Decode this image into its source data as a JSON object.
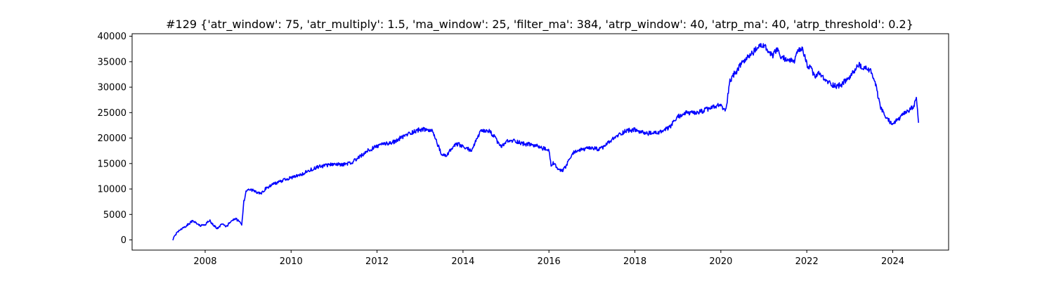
{
  "chart_data": {
    "type": "line",
    "title": "#129 {'atr_window': 75, 'atr_multiply': 1.5, 'ma_window': 25, 'filter_ma': 384, 'atrp_window': 40, 'atrp_ma': 40, 'atrp_threshold': 0.2}",
    "xlabel": "",
    "ylabel": "",
    "xlim": [
      2006.3,
      2025.3
    ],
    "ylim": [
      -2000,
      40500
    ],
    "xticks": [
      2008,
      2010,
      2012,
      2014,
      2016,
      2018,
      2020,
      2022,
      2024
    ],
    "yticks": [
      0,
      5000,
      10000,
      15000,
      20000,
      25000,
      30000,
      35000,
      40000
    ],
    "grid": false,
    "line_color": "#0000ff",
    "series": [
      {
        "x": [
          2007.25,
          2007.3,
          2007.4,
          2007.5,
          2007.6,
          2007.7,
          2007.8,
          2007.9,
          2008.0,
          2008.1,
          2008.2,
          2008.3,
          2008.4,
          2008.5,
          2008.6,
          2008.7,
          2008.8,
          2008.85,
          2008.9,
          2008.95,
          2009.0,
          2009.1,
          2009.2,
          2009.3,
          2009.4,
          2009.5,
          2009.6,
          2009.7,
          2009.8,
          2009.9,
          2010.0,
          2010.2,
          2010.4,
          2010.6,
          2010.8,
          2011.0,
          2011.2,
          2011.4,
          2011.6,
          2011.8,
          2012.0,
          2012.2,
          2012.4,
          2012.6,
          2012.8,
          2013.0,
          2013.2,
          2013.3,
          2013.4,
          2013.5,
          2013.6,
          2013.7,
          2013.8,
          2013.9,
          2014.0,
          2014.2,
          2014.4,
          2014.6,
          2014.7,
          2014.8,
          2014.9,
          2015.0,
          2015.2,
          2015.4,
          2015.6,
          2015.8,
          2016.0,
          2016.05,
          2016.1,
          2016.2,
          2016.3,
          2016.4,
          2016.5,
          2016.6,
          2016.8,
          2017.0,
          2017.2,
          2017.4,
          2017.6,
          2017.8,
          2018.0,
          2018.2,
          2018.4,
          2018.6,
          2018.8,
          2019.0,
          2019.2,
          2019.4,
          2019.6,
          2019.8,
          2020.0,
          2020.1,
          2020.15,
          2020.2,
          2020.3,
          2020.4,
          2020.5,
          2020.6,
          2020.7,
          2020.8,
          2020.9,
          2021.0,
          2021.1,
          2021.2,
          2021.3,
          2021.4,
          2021.5,
          2021.6,
          2021.7,
          2021.8,
          2021.9,
          2022.0,
          2022.1,
          2022.2,
          2022.3,
          2022.4,
          2022.5,
          2022.6,
          2022.7,
          2022.8,
          2022.9,
          2023.0,
          2023.1,
          2023.2,
          2023.3,
          2023.4,
          2023.5,
          2023.6,
          2023.7,
          2023.8,
          2023.9,
          2024.0,
          2024.1,
          2024.2,
          2024.3,
          2024.4,
          2024.5,
          2024.55,
          2024.6
        ],
        "y": [
          0,
          1000,
          1800,
          2400,
          3000,
          3700,
          3300,
          2800,
          3000,
          3900,
          2800,
          2200,
          3300,
          2600,
          3800,
          4200,
          3600,
          2800,
          7500,
          9500,
          10000,
          9800,
          9400,
          9000,
          10000,
          10600,
          11000,
          11300,
          11600,
          12000,
          12200,
          12700,
          13600,
          14300,
          14600,
          14900,
          14800,
          15100,
          16400,
          17600,
          18400,
          18900,
          19300,
          20300,
          21100,
          21700,
          21600,
          21200,
          19000,
          16700,
          16500,
          17500,
          18500,
          18800,
          18200,
          17600,
          21200,
          21400,
          20600,
          19300,
          18200,
          19300,
          19500,
          18900,
          18700,
          18200,
          17500,
          14600,
          15200,
          14000,
          13400,
          14500,
          16200,
          17400,
          17800,
          18000,
          17800,
          19200,
          20500,
          21500,
          21600,
          21000,
          20900,
          21200,
          22000,
          24200,
          25000,
          24800,
          25400,
          26000,
          26500,
          25200,
          27500,
          31000,
          32500,
          33500,
          35000,
          35500,
          36500,
          37200,
          38000,
          38300,
          37000,
          36000,
          37500,
          35800,
          35600,
          35300,
          35000,
          37000,
          37500,
          34500,
          33500,
          32000,
          32800,
          31500,
          31000,
          30500,
          30200,
          30500,
          31200,
          32000,
          33000,
          34500,
          33500,
          33800,
          33000,
          30500,
          26500,
          24500,
          23500,
          22800,
          23500,
          24200,
          25000,
          25500,
          26500,
          27500,
          23000
        ]
      }
    ]
  }
}
